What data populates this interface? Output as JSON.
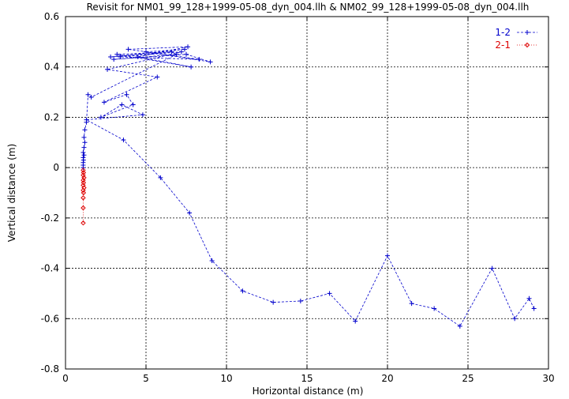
{
  "chart_data": {
    "type": "line",
    "title": "Revisit for NM01_99_128+1999-05-08_dyn_004.llh & NM02_99_128+1999-05-08_dyn_004.llh",
    "xlabel": "Horizontal distance (m)",
    "ylabel": "Vertical distance (m)",
    "xlim": [
      0,
      30
    ],
    "ylim": [
      -0.8,
      0.6
    ],
    "xticks": [
      "0",
      "5",
      "10",
      "15",
      "20",
      "25",
      "30"
    ],
    "yticks": [
      "-0.8",
      "-0.6",
      "-0.4",
      "-0.2",
      "0",
      "0.2",
      "0.4",
      "0.6"
    ],
    "grid": true,
    "legend_position": "top-right",
    "series": [
      {
        "name": "1-2",
        "color": "#0000cc",
        "marker": "plus",
        "line_style": "dashed",
        "points": [
          [
            29.1,
            -0.56
          ],
          [
            28.8,
            -0.52
          ],
          [
            27.9,
            -0.6
          ],
          [
            26.5,
            -0.4
          ],
          [
            24.5,
            -0.63
          ],
          [
            22.9,
            -0.56
          ],
          [
            21.5,
            -0.54
          ],
          [
            20.0,
            -0.35
          ],
          [
            18.0,
            -0.61
          ],
          [
            16.4,
            -0.5
          ],
          [
            14.6,
            -0.53
          ],
          [
            12.9,
            -0.535
          ],
          [
            11.0,
            -0.49
          ],
          [
            9.1,
            -0.37
          ],
          [
            7.7,
            -0.18
          ],
          [
            5.9,
            -0.04
          ],
          [
            3.6,
            0.11
          ],
          [
            1.3,
            0.19
          ],
          [
            4.8,
            0.21
          ],
          [
            3.5,
            0.25
          ],
          [
            2.2,
            0.2
          ],
          [
            4.2,
            0.25
          ],
          [
            3.8,
            0.29
          ],
          [
            2.4,
            0.26
          ],
          [
            5.7,
            0.36
          ],
          [
            2.6,
            0.39
          ],
          [
            7.2,
            0.46
          ],
          [
            3.4,
            0.44
          ],
          [
            8.3,
            0.43
          ],
          [
            3.9,
            0.47
          ],
          [
            7.6,
            0.48
          ],
          [
            4.5,
            0.44
          ],
          [
            7.8,
            0.4
          ],
          [
            3.2,
            0.45
          ],
          [
            6.6,
            0.46
          ],
          [
            2.8,
            0.44
          ],
          [
            7.4,
            0.47
          ],
          [
            5.0,
            0.46
          ],
          [
            9.0,
            0.42
          ],
          [
            7.5,
            0.45
          ],
          [
            3.0,
            0.43
          ],
          [
            6.9,
            0.45
          ],
          [
            1.6,
            0.28
          ],
          [
            1.4,
            0.29
          ],
          [
            1.3,
            0.18
          ],
          [
            1.2,
            0.15
          ],
          [
            1.15,
            0.12
          ],
          [
            1.2,
            0.1
          ],
          [
            1.15,
            0.08
          ],
          [
            1.1,
            0.06
          ],
          [
            1.15,
            0.05
          ],
          [
            1.1,
            0.04
          ],
          [
            1.12,
            0.03
          ],
          [
            1.1,
            0.02
          ],
          [
            1.1,
            0.01
          ],
          [
            1.1,
            0.0
          ]
        ]
      },
      {
        "name": "2-1",
        "color": "#dd0000",
        "marker": "diamond",
        "line_style": "dotted",
        "points": [
          [
            1.1,
            -0.01
          ],
          [
            1.12,
            -0.02
          ],
          [
            1.1,
            -0.03
          ],
          [
            1.15,
            -0.04
          ],
          [
            1.1,
            -0.05
          ],
          [
            1.12,
            -0.06
          ],
          [
            1.1,
            -0.07
          ],
          [
            1.15,
            -0.08
          ],
          [
            1.1,
            -0.09
          ],
          [
            1.12,
            -0.1
          ],
          [
            1.1,
            -0.12
          ],
          [
            1.1,
            -0.16
          ],
          [
            1.1,
            -0.22
          ]
        ]
      }
    ]
  }
}
